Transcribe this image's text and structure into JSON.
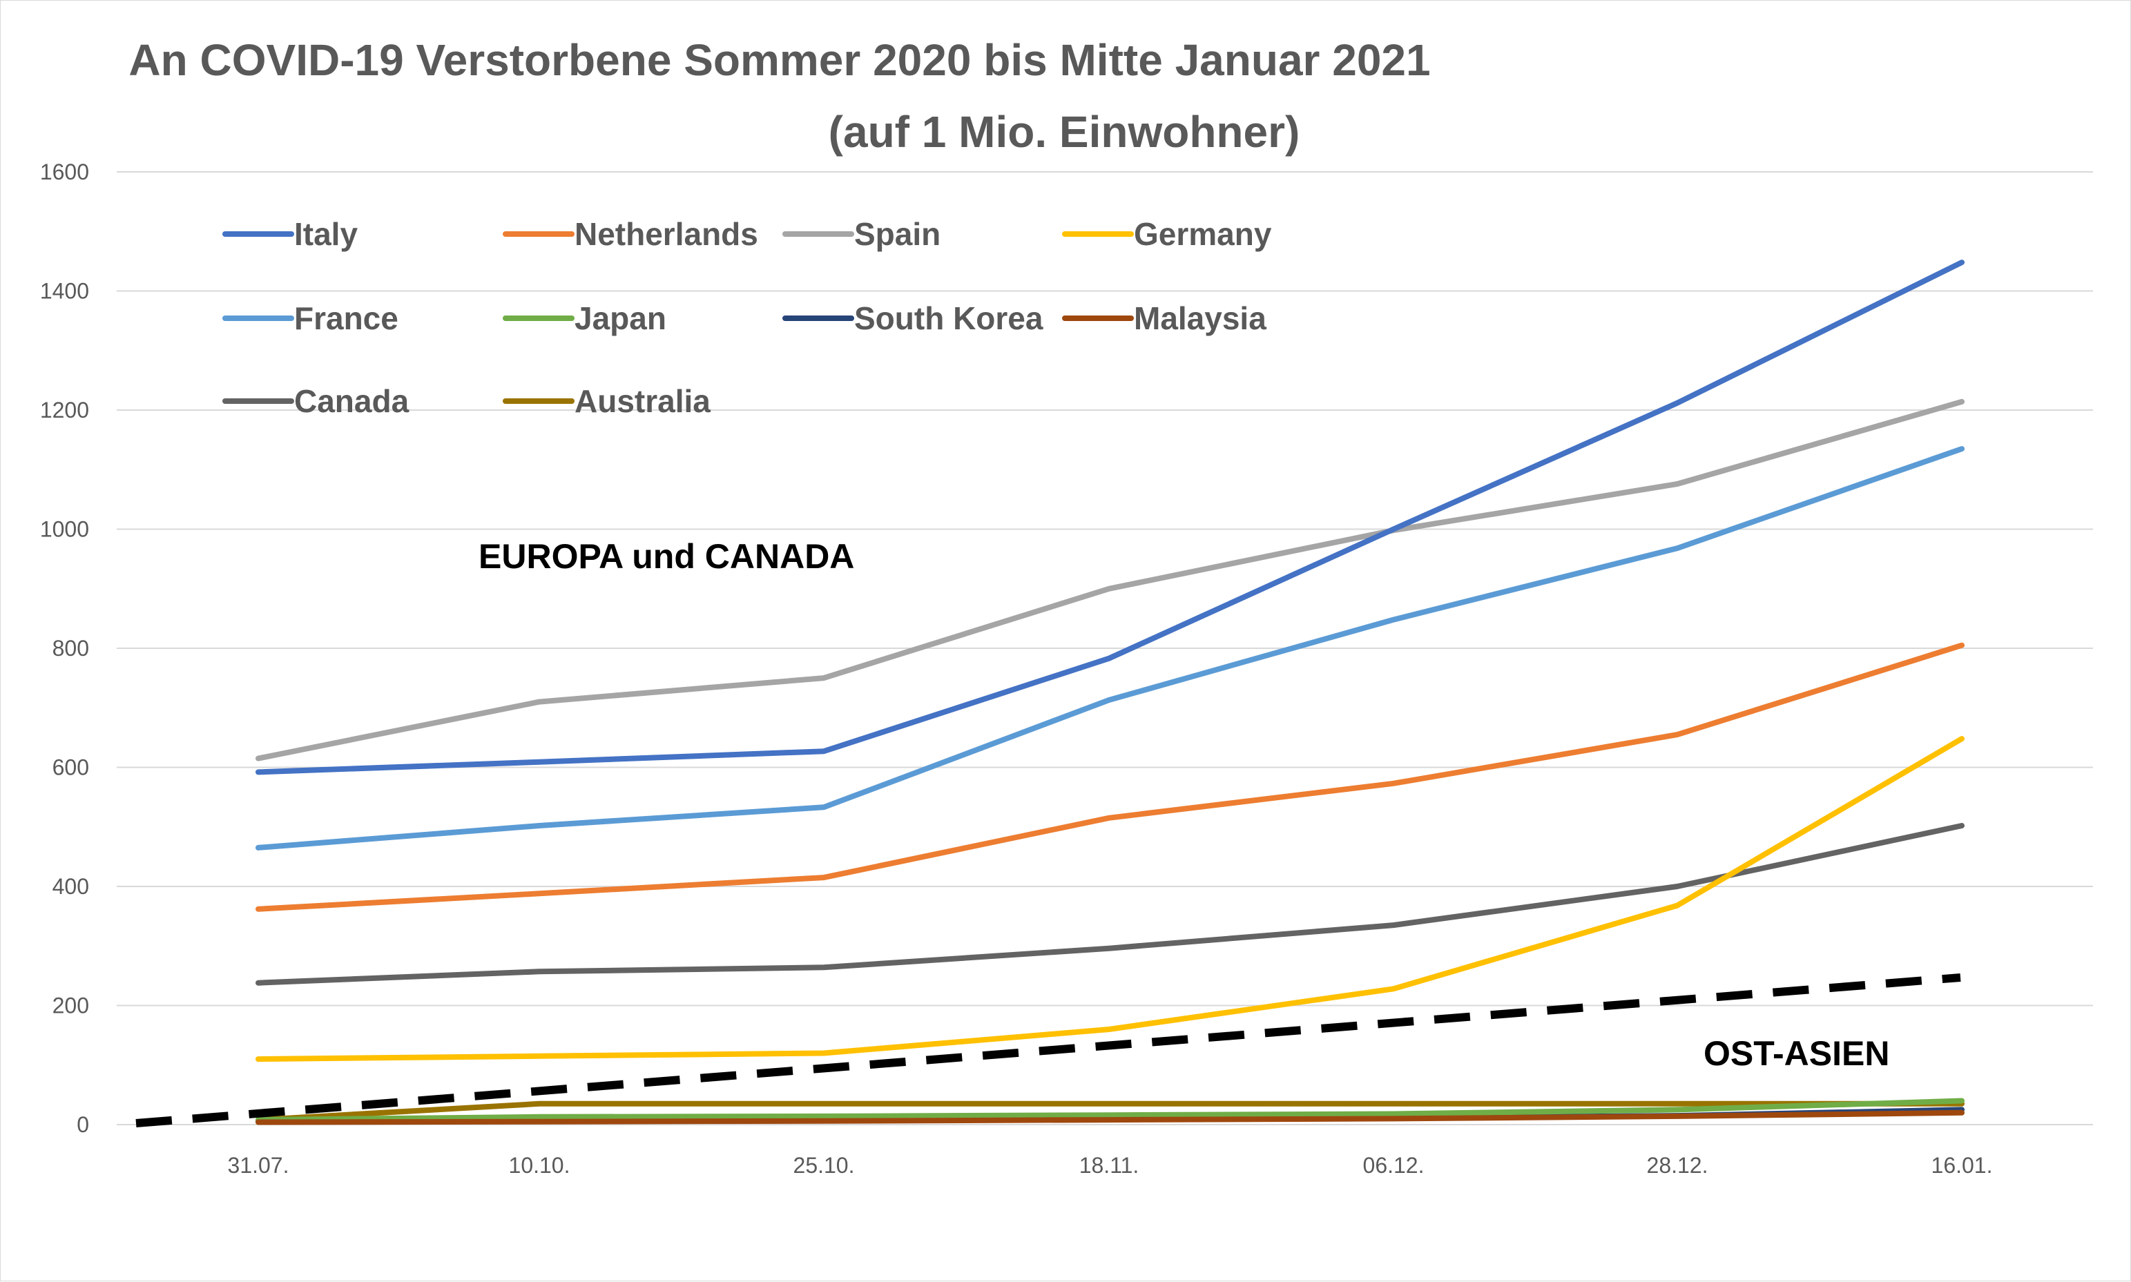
{
  "chart_data": {
    "type": "line",
    "title_line1": "An COVID-19 Verstorbene Sommer 2020 bis Mitte Januar 2021",
    "title_line2": "(auf 1 Mio. Einwohner)",
    "xlabel": "",
    "ylabel": "",
    "categories": [
      "31.07.",
      "10.10.",
      "25.10.",
      "18.11.",
      "06.12.",
      "28.12.",
      "16.01."
    ],
    "ylim": [
      0,
      1600
    ],
    "yticks": [
      0,
      200,
      400,
      600,
      800,
      1000,
      1200,
      1400,
      1600
    ],
    "grid": true,
    "legend_position": "top-left",
    "series": [
      {
        "name": "Italy",
        "color": "#4472c4",
        "values": [
          592,
          609,
          627,
          783,
          1000,
          1212,
          1448
        ]
      },
      {
        "name": "Netherlands",
        "color": "#ed7d31",
        "values": [
          362,
          388,
          415,
          515,
          573,
          655,
          805
        ]
      },
      {
        "name": "Spain",
        "color": "#a5a5a5",
        "values": [
          615,
          710,
          750,
          900,
          998,
          1076,
          1214
        ]
      },
      {
        "name": "Germany",
        "color": "#ffc000",
        "values": [
          110,
          115,
          120,
          160,
          228,
          368,
          648
        ]
      },
      {
        "name": "France",
        "color": "#5b9bd5",
        "values": [
          465,
          502,
          533,
          713,
          848,
          968,
          1135
        ]
      },
      {
        "name": "Japan",
        "color": "#70ad47",
        "values": [
          8,
          13,
          14,
          16,
          18,
          25,
          40
        ]
      },
      {
        "name": "South Korea",
        "color": "#264478",
        "values": [
          6,
          8,
          9,
          10,
          11,
          15,
          25
        ]
      },
      {
        "name": "Malaysia",
        "color": "#9e480e",
        "values": [
          4,
          5,
          6,
          8,
          10,
          14,
          20
        ]
      },
      {
        "name": "Canada",
        "color": "#636363",
        "values": [
          238,
          257,
          264,
          296,
          335,
          400,
          502
        ]
      },
      {
        "name": "Australia",
        "color": "#997300",
        "values": [
          8,
          35,
          35,
          35,
          35,
          35,
          35
        ]
      }
    ],
    "trend_line": {
      "color": "#000000",
      "style": "dashed",
      "y_start": 0,
      "y_end": 247
    },
    "annotations": [
      {
        "text": "EUROPA und CANADA"
      },
      {
        "text": "OST-ASIEN"
      }
    ]
  }
}
